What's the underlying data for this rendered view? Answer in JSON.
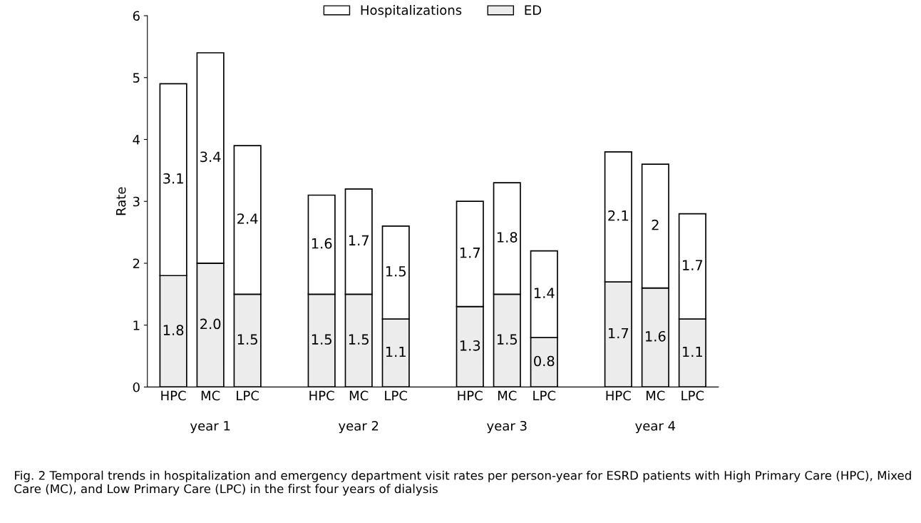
{
  "chart_data": {
    "type": "bar",
    "stacked": true,
    "ylabel": "Rate",
    "categories": [
      "HPC",
      "MC",
      "LPC",
      null,
      "HPC",
      "MC",
      "LPC",
      null,
      "HPC",
      "MC",
      "LPC",
      null,
      "HPC",
      "MC",
      "LPC"
    ],
    "series": [
      {
        "name": "ED",
        "color": "#ececec",
        "values": [
          1.8,
          2.0,
          1.5,
          null,
          1.5,
          1.5,
          1.1,
          null,
          1.3,
          1.5,
          0.8,
          null,
          1.7,
          1.6,
          1.1
        ],
        "value_labels": [
          "1.8",
          "2.0",
          "1.5",
          null,
          "1.5",
          "1.5",
          "1.1",
          null,
          "1.3",
          "1.5",
          "0.8",
          null,
          "1.7",
          "1.6",
          "1.1"
        ]
      },
      {
        "name": "Hospitalizations",
        "color": "#ffffff",
        "values": [
          3.1,
          3.4,
          2.4,
          null,
          1.6,
          1.7,
          1.5,
          null,
          1.7,
          1.8,
          1.4,
          null,
          2.1,
          2,
          1.7
        ],
        "value_labels": [
          "3.1",
          "3.4",
          "2.4",
          null,
          "1.6",
          "1.7",
          "1.5",
          null,
          "1.7",
          "1.8",
          "1.4",
          null,
          "2.1",
          "2",
          "1.7"
        ]
      }
    ],
    "ylim": [
      0,
      6
    ],
    "yticks": [
      0,
      1,
      2,
      3,
      4,
      5,
      6
    ],
    "grid": false,
    "legend": "top",
    "annotations": [
      "year 1",
      "year 2",
      "year 3",
      "year 4",
      "Fig. 2 Temporal trends in hospitalization and emergency department visit rates per person-year for ESRD patients with High Primary Care (HPC), Mixed Care (MC), and Low Primary Care (LPC) in the first four years of dialysis"
    ]
  }
}
